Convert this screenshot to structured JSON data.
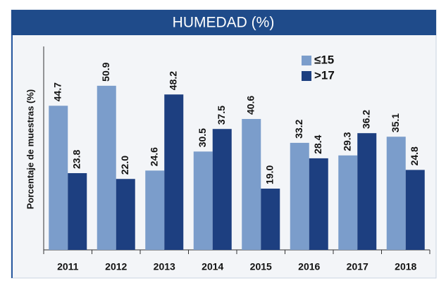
{
  "chart_data": {
    "type": "bar",
    "title": "HUMEDAD (%)",
    "y_label": "Porcentaje de muestras (%)",
    "categories": [
      "2011",
      "2012",
      "2013",
      "2014",
      "2015",
      "2016",
      "2017",
      "2018"
    ],
    "series": [
      {
        "name": "≤15",
        "color": "#7b9dcb",
        "values": [
          44.7,
          50.9,
          24.6,
          30.5,
          40.6,
          33.2,
          29.3,
          35.1
        ],
        "value_labels": [
          "44.7",
          "50.9",
          "24.6",
          "30.5",
          "40.6",
          "33.2",
          "29.3",
          "35.1"
        ]
      },
      {
        "name": ">17",
        "color": "#1d3f80",
        "values": [
          23.8,
          22.0,
          48.2,
          37.5,
          19.0,
          28.4,
          36.2,
          24.8
        ],
        "value_labels": [
          "23.8",
          "22.0",
          "48.2",
          "37.5",
          "19.0",
          "28.4",
          "36.2",
          "24.8"
        ]
      }
    ],
    "ylim": [
      0,
      62
    ],
    "legend": "top-right"
  }
}
